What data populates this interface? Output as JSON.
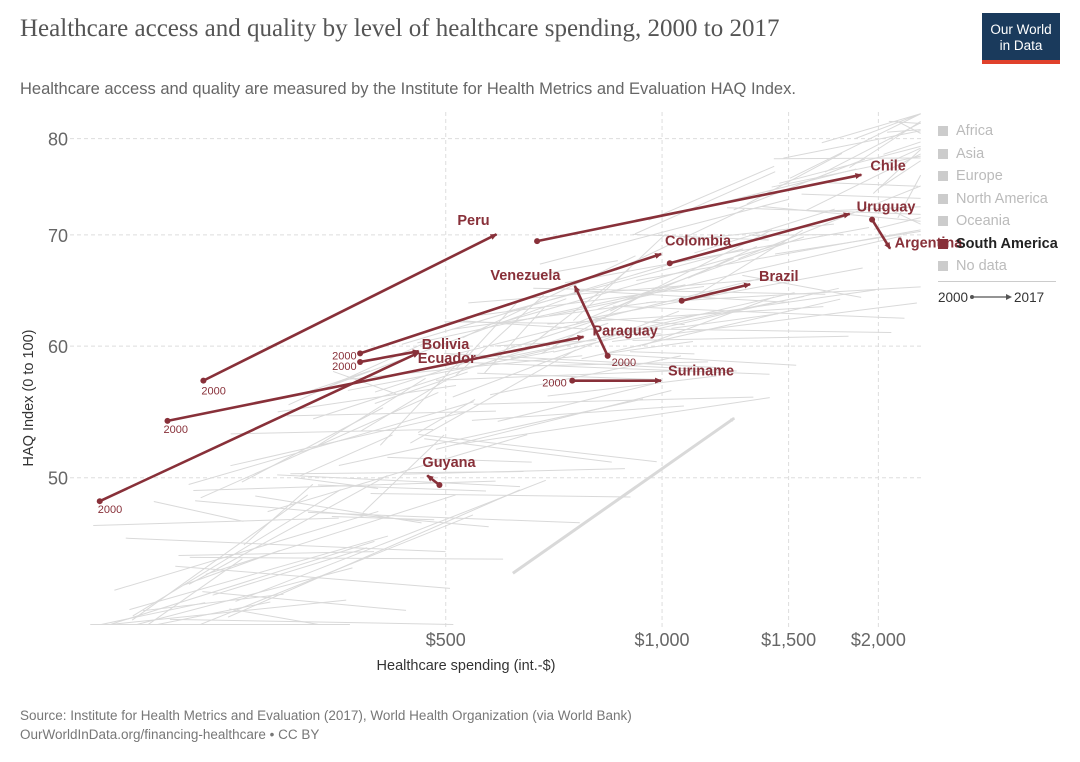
{
  "header": {
    "title": "Healthcare access and quality by level of healthcare spending, 2000 to 2017",
    "subtitle": "Healthcare access and quality are measured by the Institute for Health Metrics and Evaluation HAQ Index.",
    "logo_line1": "Our World",
    "logo_line2": "in Data"
  },
  "legend": {
    "items": [
      {
        "label": "Africa",
        "active": false
      },
      {
        "label": "Asia",
        "active": false
      },
      {
        "label": "Europe",
        "active": false
      },
      {
        "label": "North America",
        "active": false
      },
      {
        "label": "Oceania",
        "active": false
      },
      {
        "label": "South America",
        "active": true
      },
      {
        "label": "No data",
        "active": false
      }
    ],
    "time_start": "2000",
    "time_end": "2017"
  },
  "footer": {
    "source": "Source: Institute for Health Metrics and Evaluation (2017), World Health Organization (via World Bank)",
    "credit": "OurWorldInData.org/financing-healthcare • CC BY"
  },
  "colors": {
    "highlight": "#883039",
    "background_lines": "#d9d9d9",
    "grid": "#dddddd"
  },
  "chart_data": {
    "type": "scatter",
    "xlabel": "Healthcare spending (int.-$)",
    "ylabel": "HAQ Index (0 to 100)",
    "xlim": [
      150,
      2300
    ],
    "ylim": [
      40.6,
      83
    ],
    "x_scale": "log",
    "y_scale": "log",
    "x_ticks": [
      500,
      1000,
      1500,
      2000
    ],
    "x_tick_labels": [
      "$500",
      "$1,000",
      "$1,500",
      "$2,000"
    ],
    "y_ticks": [
      50,
      60,
      70,
      80
    ],
    "y_tick_labels": [
      "50",
      "60",
      "70",
      "80"
    ],
    "grid": true,
    "start_label": "2000",
    "series": [
      {
        "name": "Chile",
        "start": [
          670,
          69.4
        ],
        "end": [
          1900,
          76.1
        ],
        "show_start_label": false
      },
      {
        "name": "Uruguay",
        "start": [
          1025,
          67.3
        ],
        "end": [
          1830,
          72.1
        ],
        "show_start_label": false
      },
      {
        "name": "Argentina",
        "start": [
          1960,
          71.5
        ],
        "end": [
          2080,
          68.6
        ],
        "show_start_label": false
      },
      {
        "name": "Peru",
        "start": [
          230,
          57.2
        ],
        "end": [
          590,
          70.1
        ],
        "show_start_label": true
      },
      {
        "name": "Colombia",
        "start": [
          380,
          59.4
        ],
        "end": [
          1000,
          68.2
        ],
        "show_start_label": true
      },
      {
        "name": "Brazil",
        "start": [
          1065,
          63.9
        ],
        "end": [
          1330,
          65.4
        ],
        "show_start_label": false
      },
      {
        "name": "Venezuela",
        "start": [
          840,
          59.2
        ],
        "end": [
          755,
          65.3
        ],
        "show_start_label": true
      },
      {
        "name": "Ecuador",
        "start": [
          380,
          58.7
        ],
        "end": [
          460,
          59.6
        ],
        "show_start_label": true
      },
      {
        "name": "Bolivia",
        "start": [
          165,
          48.4
        ],
        "end": [
          460,
          59.5
        ],
        "show_start_label": true
      },
      {
        "name": "Paraguay",
        "start": [
          205,
          54.1
        ],
        "end": [
          780,
          60.8
        ],
        "show_start_label": true
      },
      {
        "name": "Suriname",
        "start": [
          750,
          57.2
        ],
        "end": [
          1000,
          57.2
        ],
        "show_start_label": true
      },
      {
        "name": "Guyana",
        "start": [
          490,
          49.5
        ],
        "end": [
          470,
          50.2
        ],
        "show_start_label": false
      }
    ]
  }
}
